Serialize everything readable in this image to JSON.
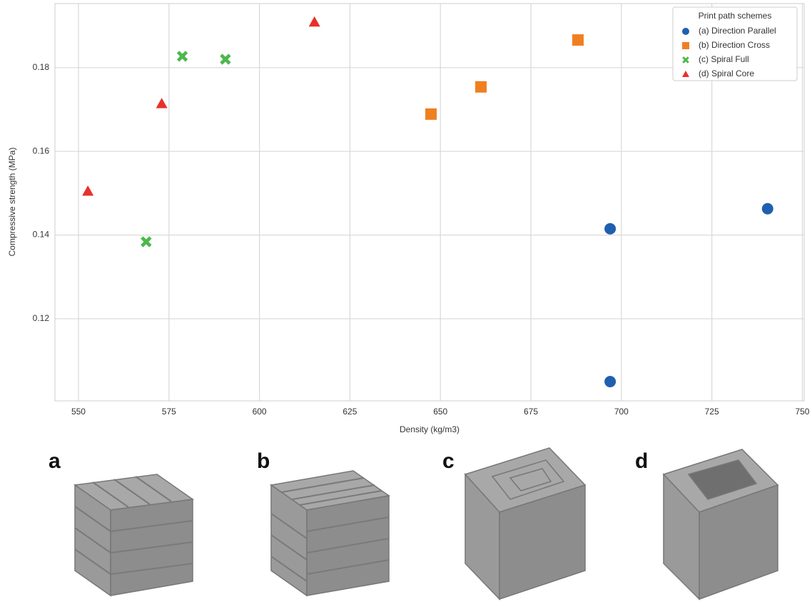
{
  "chart_data": {
    "type": "scatter",
    "xlabel": "Density (kg/m3)",
    "ylabel": "Compressive strength (MPa)",
    "xlim": [
      543.5,
      750.5
    ],
    "ylim": [
      0.1004,
      0.1953
    ],
    "xticks": [
      550,
      575,
      600,
      625,
      650,
      675,
      700,
      725,
      750
    ],
    "yticks": [
      0.12,
      0.14,
      0.16,
      0.18
    ],
    "grid": true,
    "legend_title": "Print path schemes",
    "legend_position": "upper right",
    "series": [
      {
        "name": "(a) Direction Parallel",
        "color": "#1f5fb0",
        "marker": "circle",
        "x": [
          696.9,
          696.9,
          740.4
        ],
        "values": [
          0.1415,
          0.105,
          0.1463
        ]
      },
      {
        "name": "(b) Direction Cross",
        "color": "#f07f22",
        "marker": "square",
        "x": [
          647.4,
          661.2,
          688.0
        ],
        "values": [
          0.1689,
          0.1754,
          0.1866
        ]
      },
      {
        "name": "(c) Spiral Full",
        "color": "#4cb84c",
        "marker": "x",
        "x": [
          568.7,
          578.7,
          590.6
        ],
        "values": [
          0.1384,
          0.1827,
          0.182
        ]
      },
      {
        "name": "(d) Spiral Core",
        "color": "#e8312a",
        "marker": "triangle",
        "x": [
          552.6,
          573.0,
          615.2
        ],
        "values": [
          0.1505,
          0.1714,
          0.1909
        ]
      }
    ]
  },
  "panel_labels": [
    "a",
    "b",
    "c",
    "d"
  ]
}
